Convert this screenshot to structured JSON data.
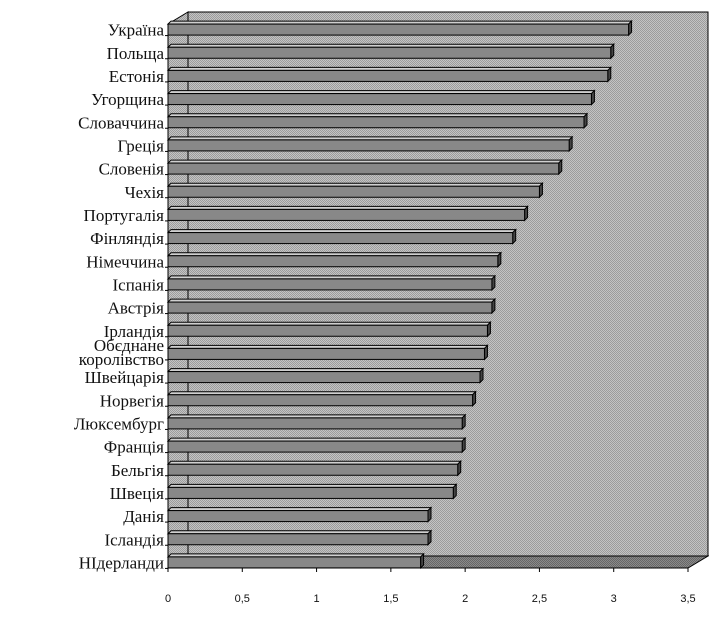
{
  "chart_data": {
    "type": "bar",
    "orientation": "horizontal",
    "title": "",
    "xlabel": "",
    "ylabel": "",
    "xlim": [
      0,
      3.5
    ],
    "xticks": [
      "0",
      "0,5",
      "1",
      "1,5",
      "2",
      "2,5",
      "3",
      "3,5"
    ],
    "grid": false,
    "legend": "none",
    "categories": [
      "Україна",
      "Польща",
      "Естонія",
      "Угорщина",
      "Словаччина",
      "Греція",
      "Словенія",
      "Чехія",
      "Португалія",
      "Фінляндія",
      "Німеччина",
      "Іспанія",
      "Австрія",
      "Ірландія",
      "Обєднане королівство",
      "Швейцарія",
      "Норвегія",
      "Люксембург",
      "Франція",
      "Бельгія",
      "Швеція",
      "Данія",
      "Ісландія",
      "НІдерланди"
    ],
    "values": [
      3.1,
      2.98,
      2.96,
      2.85,
      2.8,
      2.7,
      2.63,
      2.5,
      2.4,
      2.32,
      2.22,
      2.18,
      2.18,
      2.15,
      2.13,
      2.1,
      2.05,
      1.98,
      1.98,
      1.95,
      1.92,
      1.75,
      1.75,
      1.7
    ],
    "colors": {
      "bar_front": "#888888",
      "bar_top": "#d0d0d0",
      "bar_side": "#444444",
      "plot_back": "#c0c0c0",
      "floor": "#9a9a9a"
    }
  }
}
